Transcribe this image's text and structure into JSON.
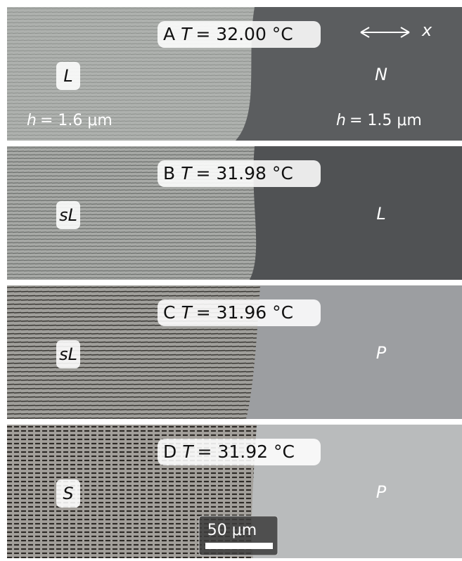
{
  "panels": [
    {
      "letter": "A",
      "symbol": "T",
      "value": "= 32.00 °C",
      "left_label": "L",
      "right_label": "N",
      "left_thickness": {
        "symbol": "h",
        "value": "= 1.6 μm"
      },
      "right_thickness": {
        "symbol": "h",
        "value": "= 1.5 μm"
      },
      "axis_label": "x"
    },
    {
      "letter": "B",
      "symbol": "T",
      "value": "= 31.98 °C",
      "left_label": "sL",
      "right_label": "L"
    },
    {
      "letter": "C",
      "symbol": "T",
      "value": "= 31.96 °C",
      "left_label": "sL",
      "right_label": "P"
    },
    {
      "letter": "D",
      "symbol": "T",
      "value": "= 31.92 °C",
      "left_label": "S",
      "right_label": "P",
      "scale_bar": "50 μm"
    }
  ]
}
